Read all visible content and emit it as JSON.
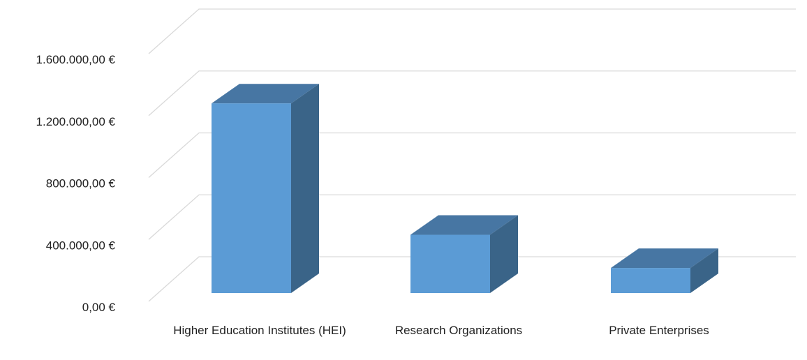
{
  "chart_data": {
    "type": "bar3d",
    "categories": [
      "Higher Education Institutes (HEI)",
      "Research Organizations",
      "Private Enterprises"
    ],
    "values": [
      1400000,
      430000,
      185000
    ],
    "color": "#5b9bd5",
    "ylim": [
      0,
      1600000
    ],
    "yticks": [
      {
        "value": 0,
        "label": "0,00 €"
      },
      {
        "value": 400000,
        "label": "400.000,00 €"
      },
      {
        "value": 800000,
        "label": "800.000,00 €"
      },
      {
        "value": 1200000,
        "label": "1.200.000,00 €"
      },
      {
        "value": 1600000,
        "label": "1.600.000,00 €"
      }
    ],
    "grid": true
  }
}
